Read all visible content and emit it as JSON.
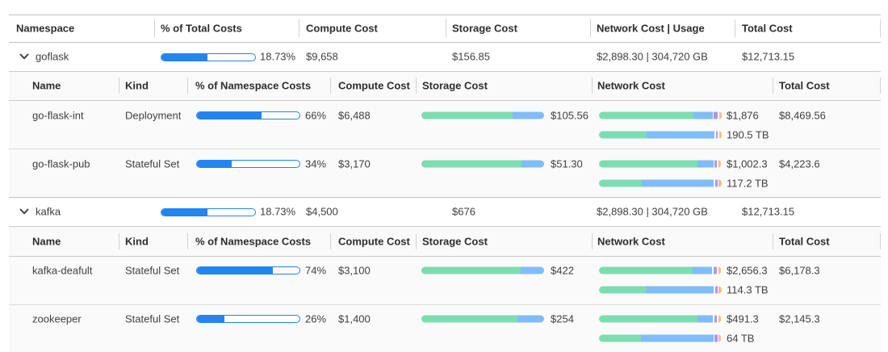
{
  "accent_colors": {
    "progress_blue": "#2285f0",
    "bar_green": "#7edcb2",
    "bar_blue": "#80bdf8",
    "bar_purple": "#ab96f2",
    "bar_orange": "#f6be7d"
  },
  "header": {
    "namespace": "Namespace",
    "pct_total": "% of Total Costs",
    "compute": "Compute Cost",
    "storage": "Storage Cost",
    "network": "Network Cost | Usage",
    "total": "Total Cost"
  },
  "nested_header": {
    "name": "Name",
    "kind": "Kind",
    "pct_ns": "% of Namespace Costs",
    "compute": "Compute Cost",
    "storage": "Storage Cost",
    "network": "Network Cost",
    "total": "Total Cost"
  },
  "groups": [
    {
      "namespace": "goflask",
      "pct_label": "18.73%",
      "pct_fill": 49.2,
      "compute": "$9,658",
      "storage": "$156.85",
      "network_usage": "$2,898.30 | 304,720 GB",
      "total": "$12,713.15",
      "rows": [
        {
          "name": "go-flask-int",
          "kind": "Deployment",
          "pct_label": "66%",
          "pct_fill": 63,
          "compute": "$6,488",
          "storage_value": "$105.56",
          "storage": {
            "green": 74.3,
            "blue": 25.7
          },
          "net_cost_value": "$1,876",
          "net_cost": {
            "green": 77.0,
            "blue": 15.6,
            "purple": 3.4,
            "orange": 2.0
          },
          "net_usage_value": "190.5 TB",
          "net_usage": {
            "green": 38.8,
            "blue": 55.5,
            "purple": 1.6,
            "orange": 2.2
          },
          "total": "$8,469.56"
        },
        {
          "name": "go-flask-pub",
          "kind": "Stateful Set",
          "pct_label": "34%",
          "pct_fill": 34,
          "compute": "$3,170",
          "storage_value": "$51.30",
          "storage": {
            "green": 81.8,
            "blue": 18.2
          },
          "net_cost_value": "$1,002.3",
          "net_cost": {
            "green": 80.0,
            "blue": 13.1,
            "purple": 2.2,
            "orange": 2.2
          },
          "net_usage_value": "117.2 TB",
          "net_usage": {
            "green": 34.6,
            "blue": 59.0,
            "purple": 2.0,
            "orange": 2.2
          },
          "total": "$4,223.6"
        }
      ]
    },
    {
      "namespace": "kafka",
      "pct_label": "18.73%",
      "pct_fill": 49.2,
      "compute": "$4,500",
      "storage": "$676",
      "network_usage": "$2,898.30 | 304,720 GB",
      "total": "$12,713.15",
      "rows": [
        {
          "name": "kafka-deafult",
          "kind": "Stateful Set",
          "pct_label": "74%",
          "pct_fill": 74,
          "compute": "$3,100",
          "storage_value": "$422",
          "storage": {
            "green": 80.7,
            "blue": 19.3
          },
          "net_cost_value": "$2,656.3",
          "net_cost": {
            "green": 76.1,
            "blue": 16.3,
            "purple": 2.9,
            "orange": 2.2
          },
          "net_usage_value": "114.3 TB",
          "net_usage": {
            "green": 38.2,
            "blue": 55.3,
            "purple": 2.2,
            "orange": 2.2
          },
          "total": "$6,178.3"
        },
        {
          "name": "zookeeper",
          "kind": "Stateful Set",
          "pct_label": "26%",
          "pct_fill": 27,
          "compute": "$1,400",
          "storage_value": "$254",
          "storage": {
            "green": 78.0,
            "blue": 22.0
          },
          "net_cost_value": "$491.3",
          "net_cost": {
            "green": 80.0,
            "blue": 12.8,
            "purple": 2.6,
            "orange": 2.2
          },
          "net_usage_value": "64 TB",
          "net_usage": {
            "green": 34.0,
            "blue": 59.3,
            "purple": 2.2,
            "orange": 2.2
          },
          "total": "$2,145.3"
        }
      ]
    }
  ]
}
